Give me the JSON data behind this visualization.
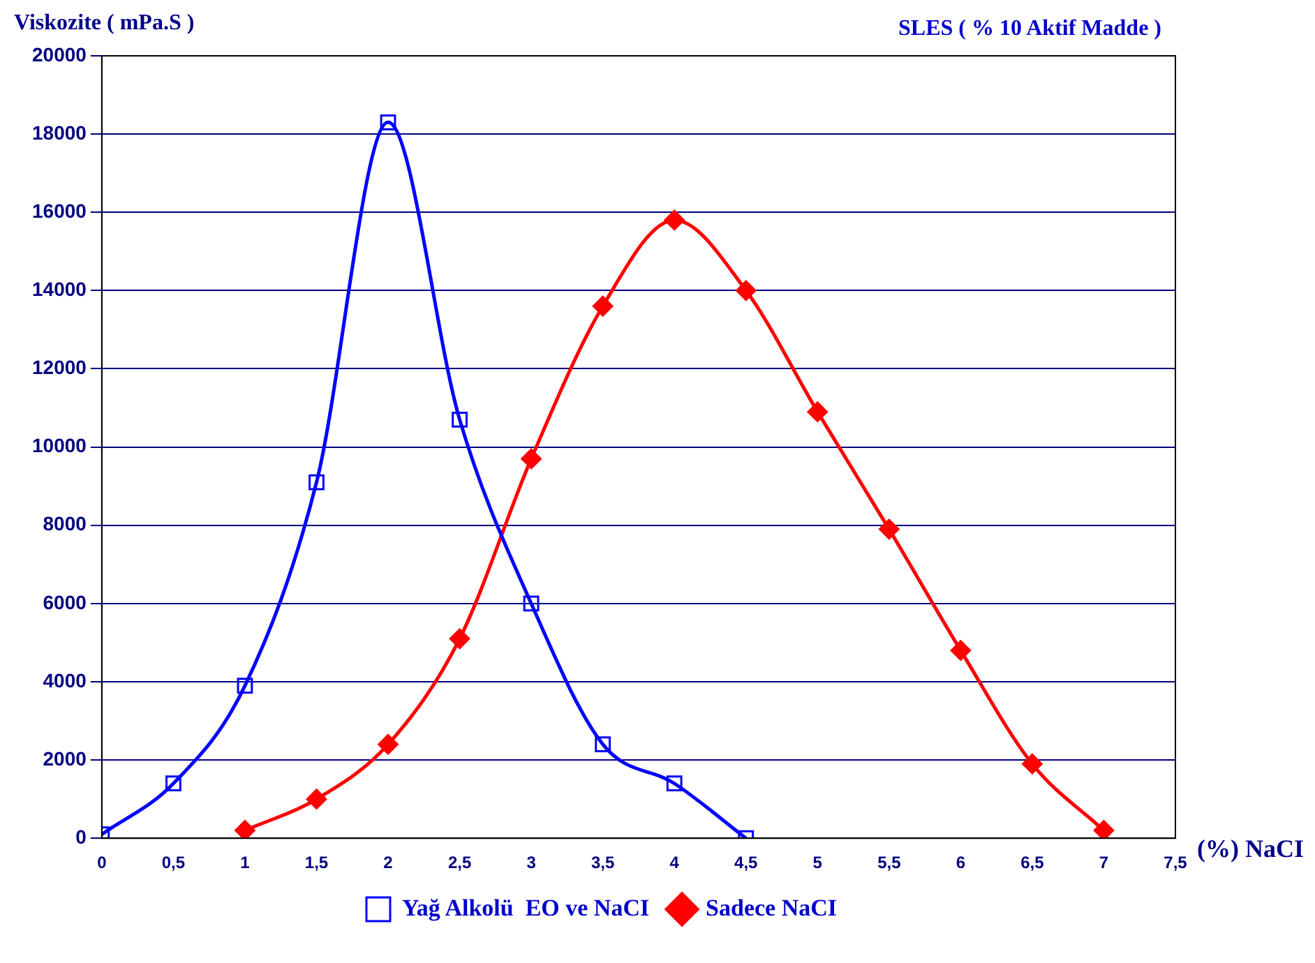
{
  "chart_data": {
    "type": "line",
    "title": "SLES ( % 10 Aktif Madde )",
    "ylabel": "Viskozite ( mPa.S )",
    "xlabel": "(%) NaCI",
    "xlim": [
      0,
      7.5
    ],
    "xticks": [
      0,
      {
        "value": 0.5,
        "label": "0,5"
      },
      1,
      {
        "value": 1.5,
        "label": "1,5"
      },
      2,
      {
        "value": 2.5,
        "label": "2,5"
      },
      3,
      {
        "value": 3.5,
        "label": "3,5"
      },
      4,
      {
        "value": 4.5,
        "label": "4,5"
      },
      5,
      {
        "value": 5.5,
        "label": "5,5"
      },
      6,
      {
        "value": 6.5,
        "label": "6,5"
      },
      7,
      {
        "value": 7.5,
        "label": "7,5"
      }
    ],
    "ylim": [
      0,
      20000
    ],
    "yticks": [
      0,
      2000,
      4000,
      6000,
      8000,
      10000,
      12000,
      14000,
      16000,
      18000,
      20000
    ],
    "grid": "y",
    "legend": "bottom",
    "line_style": "solid",
    "series": [
      {
        "name": "Yağ Alkolü  EO ve NaCI",
        "color": "#0000ff",
        "marker": "square",
        "x": [
          0,
          0.5,
          1,
          1.5,
          2,
          2.5,
          3,
          3.5,
          4,
          4.5
        ],
        "values": [
          100,
          1400,
          3900,
          9100,
          18300,
          10700,
          6000,
          2400,
          1400,
          0
        ]
      },
      {
        "name": "Sadece NaCI",
        "color": "#ff0000",
        "marker": "diamond",
        "x": [
          1,
          1.5,
          2,
          2.5,
          3,
          3.5,
          4,
          4.5,
          5,
          5.5,
          6,
          6.5,
          7
        ],
        "values": [
          200,
          1000,
          2400,
          5100,
          9700,
          13600,
          15800,
          14000,
          10900,
          7900,
          4800,
          1900,
          200
        ]
      }
    ]
  }
}
